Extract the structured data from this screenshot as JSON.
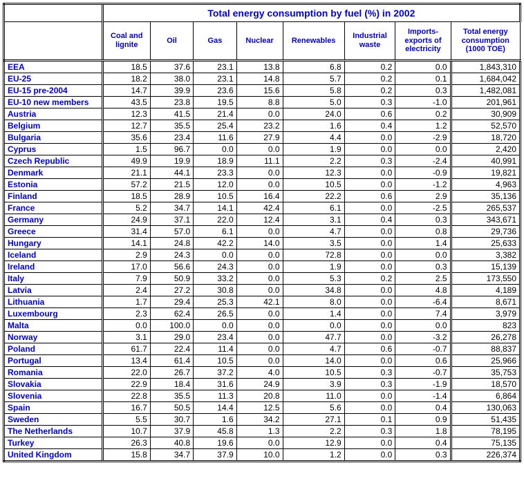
{
  "title": "Total energy consumption by fuel (%) in 2002",
  "columns": [
    "Coal and lignite",
    "Oil",
    "Gas",
    "Nuclear",
    "Renewables",
    "Industrial waste",
    "Imports-exports of electricity",
    "Total energy consumption (1000 TOE)"
  ],
  "rows": [
    {
      "label": "EEA",
      "v": [
        "18.5",
        "37.6",
        "23.1",
        "13.8",
        "6.8",
        "0.2",
        "0.0",
        "1,843,310"
      ]
    },
    {
      "label": "EU-25",
      "v": [
        "18.2",
        "38.0",
        "23.1",
        "14.8",
        "5.7",
        "0.2",
        "0.1",
        "1,684,042"
      ]
    },
    {
      "label": "EU-15 pre-2004",
      "v": [
        "14.7",
        "39.9",
        "23.6",
        "15.6",
        "5.8",
        "0.2",
        "0.3",
        "1,482,081"
      ]
    },
    {
      "label": "EU-10 new members",
      "v": [
        "43.5",
        "23.8",
        "19.5",
        "8.8",
        "5.0",
        "0.3",
        "-1.0",
        "201,961"
      ]
    },
    {
      "label": "Austria",
      "v": [
        "12.3",
        "41.5",
        "21.4",
        "0.0",
        "24.0",
        "0.6",
        "0.2",
        "30,909"
      ]
    },
    {
      "label": "Belgium",
      "v": [
        "12.7",
        "35.5",
        "25.4",
        "23.2",
        "1.6",
        "0.4",
        "1.2",
        "52,570"
      ]
    },
    {
      "label": "Bulgaria",
      "v": [
        "35.6",
        "23.4",
        "11.6",
        "27.9",
        "4.4",
        "0.0",
        "-2.9",
        "18,720"
      ]
    },
    {
      "label": "Cyprus",
      "v": [
        "1.5",
        "96.7",
        "0.0",
        "0.0",
        "1.9",
        "0.0",
        "0.0",
        "2,420"
      ]
    },
    {
      "label": "Czech Republic",
      "v": [
        "49.9",
        "19.9",
        "18.9",
        "11.1",
        "2.2",
        "0.3",
        "-2.4",
        "40,991"
      ]
    },
    {
      "label": "Denmark",
      "v": [
        "21.1",
        "44.1",
        "23.3",
        "0.0",
        "12.3",
        "0.0",
        "-0.9",
        "19,821"
      ]
    },
    {
      "label": "Estonia",
      "v": [
        "57.2",
        "21.5",
        "12.0",
        "0.0",
        "10.5",
        "0.0",
        "-1.2",
        "4,963"
      ]
    },
    {
      "label": "Finland",
      "v": [
        "18.5",
        "28.9",
        "10.5",
        "16.4",
        "22.2",
        "0.6",
        "2.9",
        "35,136"
      ]
    },
    {
      "label": "France",
      "v": [
        "5.2",
        "34.7",
        "14.1",
        "42.4",
        "6.1",
        "0.0",
        "-2.5",
        "265,537"
      ]
    },
    {
      "label": "Germany",
      "v": [
        "24.9",
        "37.1",
        "22.0",
        "12.4",
        "3.1",
        "0.4",
        "0.3",
        "343,671"
      ]
    },
    {
      "label": "Greece",
      "v": [
        "31.4",
        "57.0",
        "6.1",
        "0.0",
        "4.7",
        "0.0",
        "0.8",
        "29,736"
      ]
    },
    {
      "label": "Hungary",
      "v": [
        "14.1",
        "24.8",
        "42.2",
        "14.0",
        "3.5",
        "0.0",
        "1.4",
        "25,633"
      ]
    },
    {
      "label": "Iceland",
      "v": [
        "2.9",
        "24.3",
        "0.0",
        "0.0",
        "72.8",
        "0.0",
        "0.0",
        "3,382"
      ]
    },
    {
      "label": "Ireland",
      "v": [
        "17.0",
        "56.6",
        "24.3",
        "0.0",
        "1.9",
        "0.0",
        "0.3",
        "15,139"
      ]
    },
    {
      "label": "Italy",
      "v": [
        "7.9",
        "50.9",
        "33.2",
        "0.0",
        "5.3",
        "0.2",
        "2.5",
        "173,550"
      ]
    },
    {
      "label": "Latvia",
      "v": [
        "2.4",
        "27.2",
        "30.8",
        "0.0",
        "34.8",
        "0.0",
        "4.8",
        "4,189"
      ]
    },
    {
      "label": "Lithuania",
      "v": [
        "1.7",
        "29.4",
        "25.3",
        "42.1",
        "8.0",
        "0.0",
        "-6.4",
        "8,671"
      ]
    },
    {
      "label": "Luxembourg",
      "v": [
        "2.3",
        "62.4",
        "26.5",
        "0.0",
        "1.4",
        "0.0",
        "7.4",
        "3,979"
      ]
    },
    {
      "label": "Malta",
      "v": [
        "0.0",
        "100.0",
        "0.0",
        "0.0",
        "0.0",
        "0.0",
        "0.0",
        "823"
      ]
    },
    {
      "label": "Norway",
      "v": [
        "3.1",
        "29.0",
        "23.4",
        "0.0",
        "47.7",
        "0.0",
        "-3.2",
        "26,278"
      ]
    },
    {
      "label": "Poland",
      "v": [
        "61.7",
        "22.4",
        "11.4",
        "0.0",
        "4.7",
        "0.6",
        "-0.7",
        "88,837"
      ]
    },
    {
      "label": "Portugal",
      "v": [
        "13.4",
        "61.4",
        "10.5",
        "0.0",
        "14.0",
        "0.0",
        "0.6",
        "25,966"
      ]
    },
    {
      "label": "Romania",
      "v": [
        "22.0",
        "26.7",
        "37.2",
        "4.0",
        "10.5",
        "0.3",
        "-0.7",
        "35,753"
      ]
    },
    {
      "label": "Slovakia",
      "v": [
        "22.9",
        "18.4",
        "31.6",
        "24.9",
        "3.9",
        "0.3",
        "-1.9",
        "18,570"
      ]
    },
    {
      "label": "Slovenia",
      "v": [
        "22.8",
        "35.5",
        "11.3",
        "20.8",
        "11.0",
        "0.0",
        "-1.4",
        "6,864"
      ]
    },
    {
      "label": "Spain",
      "v": [
        "16.7",
        "50.5",
        "14.4",
        "12.5",
        "5.6",
        "0.0",
        "0.4",
        "130,063"
      ]
    },
    {
      "label": "Sweden",
      "v": [
        "5.5",
        "30.7",
        "1.6",
        "34.2",
        "27.1",
        "0.1",
        "0.9",
        "51,435"
      ]
    },
    {
      "label": "The Netherlands",
      "v": [
        "10.7",
        "37.9",
        "45.8",
        "1.3",
        "2.2",
        "0.3",
        "1.8",
        "78,195"
      ]
    },
    {
      "label": "Turkey",
      "v": [
        "26.3",
        "40.8",
        "19.6",
        "0.0",
        "12.9",
        "0.0",
        "0.4",
        "75,135"
      ]
    },
    {
      "label": "United Kingdom",
      "v": [
        "15.8",
        "34.7",
        "37.9",
        "10.0",
        "1.2",
        "0.0",
        "0.3",
        "226,374"
      ]
    }
  ]
}
